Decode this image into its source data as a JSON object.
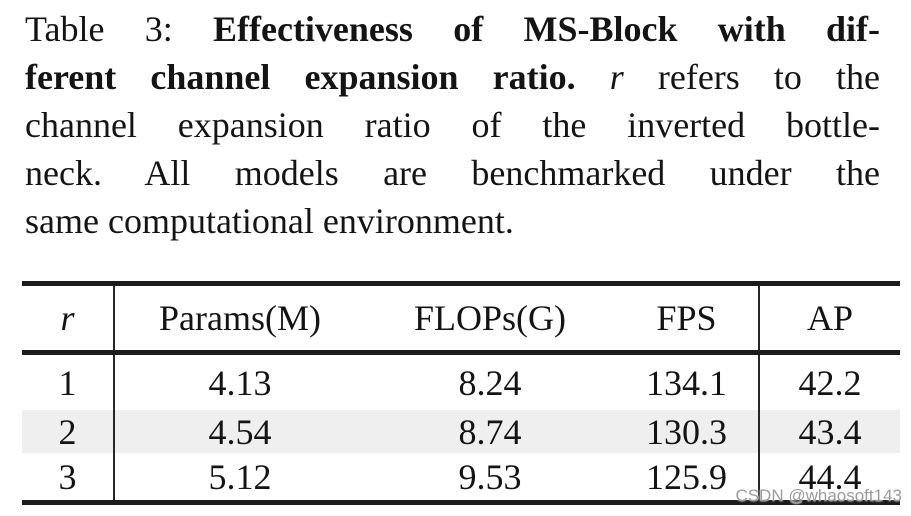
{
  "caption": {
    "label": "Table 3:",
    "bold_line1": "Effectiveness of MS-Block with dif-",
    "bold_line2": "ferent channel expansion ratio.",
    "math_r": "r",
    "line2_rest": "refers to the",
    "line3": "channel expansion ratio of the inverted bottle-",
    "line4": "neck.  All models are benchmarked under the",
    "line5": "same computational environment."
  },
  "table": {
    "header": {
      "r": "r",
      "params": "Params(M)",
      "flops": "FLOPs(G)",
      "fps": "FPS",
      "ap": "AP"
    },
    "rows": [
      {
        "r": "1",
        "params": "4.13",
        "flops": "8.24",
        "fps": "134.1",
        "ap": "42.2"
      },
      {
        "r": "2",
        "params": "4.54",
        "flops": "8.74",
        "fps": "130.3",
        "ap": "43.4"
      },
      {
        "r": "3",
        "params": "5.12",
        "flops": "9.53",
        "fps": "125.9",
        "ap": "44.4"
      }
    ],
    "highlight_row_index": 1
  },
  "watermark": {
    "text": "CSDN @whaosoft143"
  },
  "colors": {
    "background": "#ffffff",
    "text": "#141414",
    "rule": "#1c1c1c",
    "highlight_row": "#efefef",
    "watermark": "#9b9b9b"
  }
}
